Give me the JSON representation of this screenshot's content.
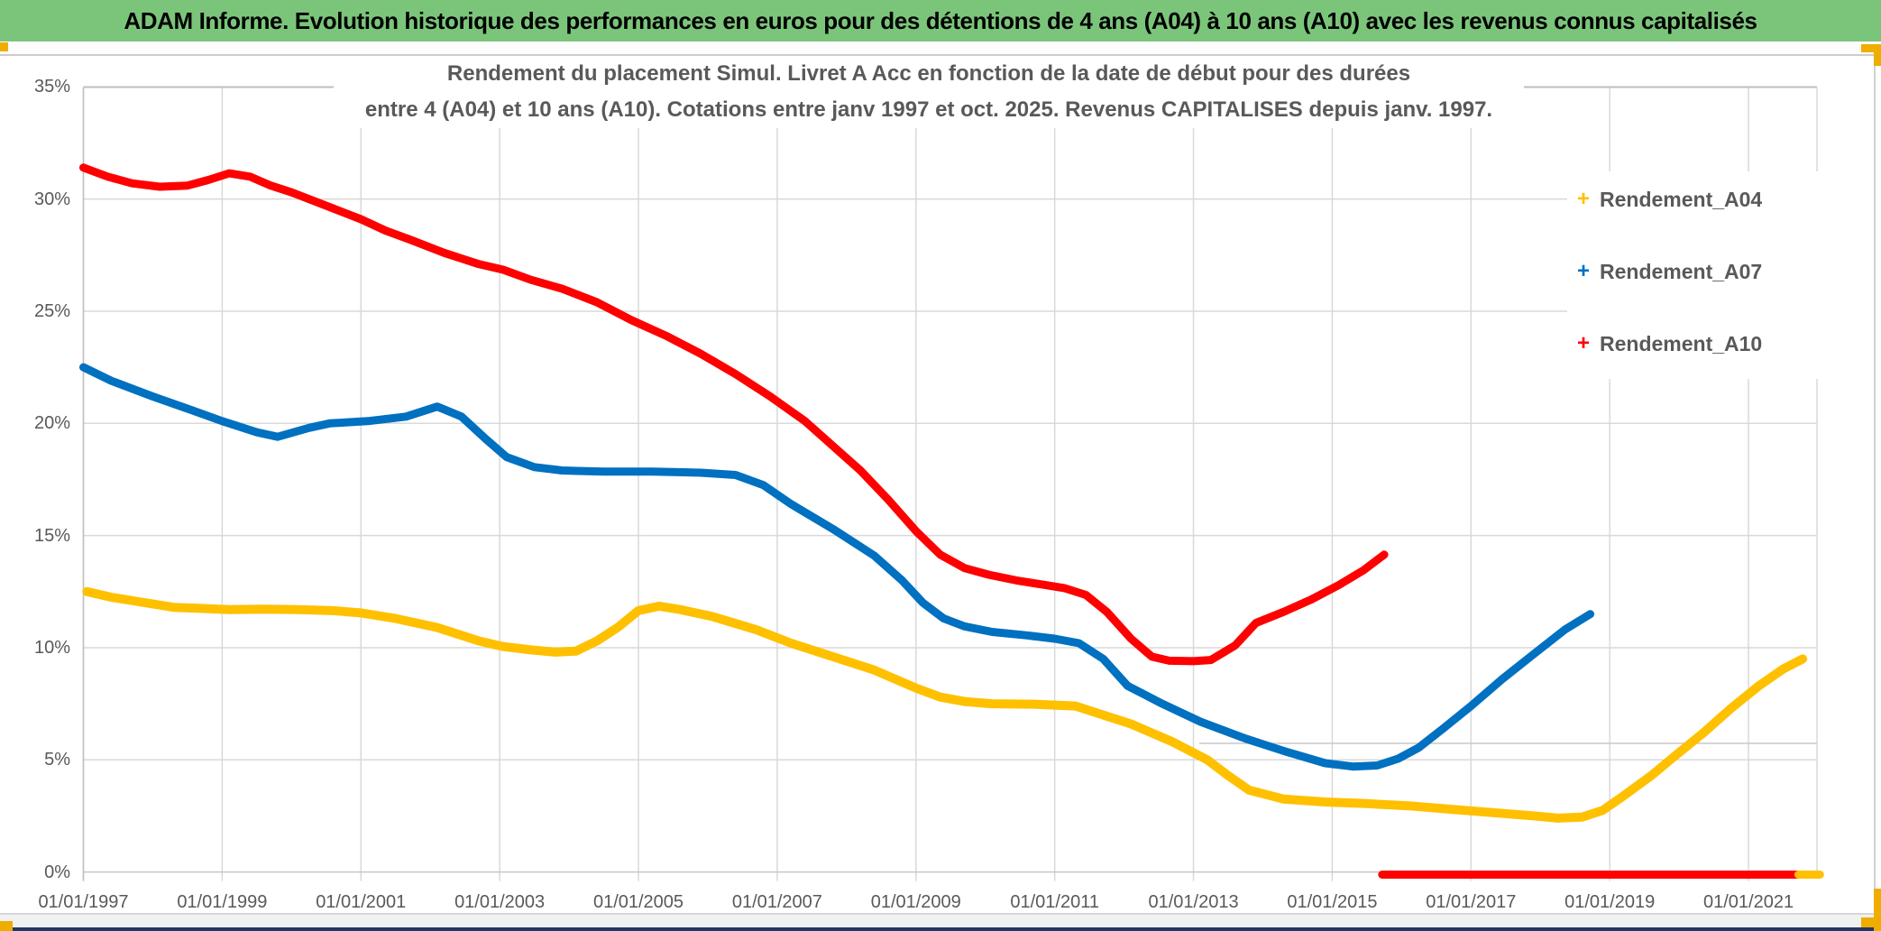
{
  "banner": {
    "text": "ADAM Informe. Evolution historique des performances en euros pour des détentions de 4 ans (A04) à 10 ans (A10) avec les revenus connus capitalisés"
  },
  "chart_data": {
    "type": "line",
    "title_line1": "Rendement du placement Simul. Livret A Acc en fonction de la date de début pour des durées",
    "title_line2": "entre 4 (A04) et 10 ans (A10). Cotations entre janv 1997 et oct. 2025. Revenus CAPITALISES depuis janv. 1997.",
    "x_axis": {
      "tick_years": [
        1997,
        1999,
        2001,
        2003,
        2005,
        2007,
        2009,
        2011,
        2013,
        2015,
        2017,
        2019,
        2021
      ],
      "tick_labels": [
        "01/01/1997",
        "01/01/1999",
        "01/01/2001",
        "01/01/2003",
        "01/01/2005",
        "01/01/2007",
        "01/01/2009",
        "01/01/2011",
        "01/01/2013",
        "01/01/2015",
        "01/01/2017",
        "01/01/2019",
        "01/01/2021"
      ],
      "range_years": [
        1997,
        2022.0
      ]
    },
    "y_axis": {
      "tick_values": [
        0,
        5,
        10,
        15,
        20,
        25,
        30,
        35
      ],
      "tick_labels": [
        "0%",
        "5%",
        "10%",
        "15%",
        "20%",
        "25%",
        "30%",
        "35%"
      ],
      "range": [
        0,
        35
      ],
      "step": 5,
      "grid": true
    },
    "legend": {
      "position": "right",
      "entries": [
        {
          "name": "Rendement_A04",
          "color": "#FFC000",
          "marker": "+"
        },
        {
          "name": "Rendement_A07",
          "color": "#0070C0",
          "marker": "+"
        },
        {
          "name": "Rendement_A10",
          "color": "#FE0000",
          "marker": "+"
        }
      ]
    },
    "series": [
      {
        "name": "Rendement_A04",
        "color": "#FFC000",
        "width": 10,
        "points": [
          [
            1997.05,
            12.5
          ],
          [
            1997.4,
            12.25
          ],
          [
            1997.8,
            12.05
          ],
          [
            1998.3,
            11.8
          ],
          [
            1998.7,
            11.75
          ],
          [
            1999.1,
            11.7
          ],
          [
            1999.6,
            11.72
          ],
          [
            2000.1,
            11.7
          ],
          [
            2000.6,
            11.65
          ],
          [
            2001.0,
            11.55
          ],
          [
            2001.5,
            11.3
          ],
          [
            2002.1,
            10.9
          ],
          [
            2002.7,
            10.3
          ],
          [
            2003.05,
            10.05
          ],
          [
            2003.45,
            9.9
          ],
          [
            2003.8,
            9.8
          ],
          [
            2004.1,
            9.85
          ],
          [
            2004.4,
            10.3
          ],
          [
            2004.7,
            10.9
          ],
          [
            2005.0,
            11.65
          ],
          [
            2005.3,
            11.85
          ],
          [
            2005.6,
            11.7
          ],
          [
            2006.05,
            11.4
          ],
          [
            2006.7,
            10.8
          ],
          [
            2007.2,
            10.2
          ],
          [
            2007.8,
            9.6
          ],
          [
            2008.4,
            9.0
          ],
          [
            2009.0,
            8.2
          ],
          [
            2009.35,
            7.8
          ],
          [
            2009.7,
            7.6
          ],
          [
            2010.1,
            7.5
          ],
          [
            2010.7,
            7.48
          ],
          [
            2011.3,
            7.4
          ],
          [
            2011.6,
            7.1
          ],
          [
            2012.1,
            6.6
          ],
          [
            2012.7,
            5.8
          ],
          [
            2013.2,
            5.0
          ],
          [
            2013.5,
            4.3
          ],
          [
            2013.8,
            3.65
          ],
          [
            2014.3,
            3.25
          ],
          [
            2014.9,
            3.12
          ],
          [
            2015.5,
            3.05
          ],
          [
            2016.1,
            2.95
          ],
          [
            2016.7,
            2.8
          ],
          [
            2017.3,
            2.65
          ],
          [
            2017.9,
            2.5
          ],
          [
            2018.25,
            2.4
          ],
          [
            2018.6,
            2.45
          ],
          [
            2018.9,
            2.75
          ],
          [
            2019.2,
            3.4
          ],
          [
            2019.6,
            4.3
          ],
          [
            2019.95,
            5.2
          ],
          [
            2020.35,
            6.2
          ],
          [
            2020.75,
            7.3
          ],
          [
            2021.15,
            8.3
          ],
          [
            2021.5,
            9.05
          ],
          [
            2021.78,
            9.5
          ]
        ]
      },
      {
        "name": "Rendement_A07",
        "color": "#0070C0",
        "width": 9,
        "points": [
          [
            1997.0,
            22.5
          ],
          [
            1997.4,
            21.9
          ],
          [
            1998.0,
            21.2
          ],
          [
            1998.55,
            20.6
          ],
          [
            1999.0,
            20.1
          ],
          [
            1999.5,
            19.6
          ],
          [
            1999.8,
            19.4
          ],
          [
            2000.25,
            19.8
          ],
          [
            2000.55,
            20.0
          ],
          [
            2001.1,
            20.1
          ],
          [
            2001.65,
            20.3
          ],
          [
            2002.1,
            20.75
          ],
          [
            2002.45,
            20.3
          ],
          [
            2002.8,
            19.3
          ],
          [
            2003.1,
            18.5
          ],
          [
            2003.5,
            18.05
          ],
          [
            2003.9,
            17.9
          ],
          [
            2004.5,
            17.85
          ],
          [
            2005.2,
            17.85
          ],
          [
            2005.9,
            17.8
          ],
          [
            2006.4,
            17.7
          ],
          [
            2006.8,
            17.25
          ],
          [
            2007.2,
            16.4
          ],
          [
            2007.8,
            15.3
          ],
          [
            2008.4,
            14.1
          ],
          [
            2008.8,
            13.0
          ],
          [
            2009.1,
            12.0
          ],
          [
            2009.4,
            11.3
          ],
          [
            2009.7,
            10.95
          ],
          [
            2010.1,
            10.7
          ],
          [
            2010.6,
            10.55
          ],
          [
            2011.0,
            10.4
          ],
          [
            2011.35,
            10.2
          ],
          [
            2011.7,
            9.5
          ],
          [
            2012.05,
            8.3
          ],
          [
            2012.55,
            7.5
          ],
          [
            2013.1,
            6.7
          ],
          [
            2013.75,
            5.95
          ],
          [
            2014.35,
            5.35
          ],
          [
            2014.9,
            4.85
          ],
          [
            2015.3,
            4.7
          ],
          [
            2015.65,
            4.75
          ],
          [
            2015.95,
            5.05
          ],
          [
            2016.25,
            5.55
          ],
          [
            2016.6,
            6.4
          ],
          [
            2017.0,
            7.4
          ],
          [
            2017.45,
            8.6
          ],
          [
            2017.9,
            9.7
          ],
          [
            2018.35,
            10.8
          ],
          [
            2018.72,
            11.5
          ]
        ]
      },
      {
        "name": "Rendement_A10",
        "color": "#FE0000",
        "width": 9,
        "points": [
          [
            1997.0,
            31.4
          ],
          [
            1997.35,
            31.0
          ],
          [
            1997.7,
            30.7
          ],
          [
            1998.1,
            30.55
          ],
          [
            1998.5,
            30.6
          ],
          [
            1998.8,
            30.85
          ],
          [
            1999.1,
            31.15
          ],
          [
            1999.4,
            31.0
          ],
          [
            1999.7,
            30.6
          ],
          [
            2000.0,
            30.3
          ],
          [
            2000.5,
            29.7
          ],
          [
            2001.0,
            29.1
          ],
          [
            2001.35,
            28.6
          ],
          [
            2001.7,
            28.2
          ],
          [
            2002.2,
            27.6
          ],
          [
            2002.7,
            27.1
          ],
          [
            2003.05,
            26.85
          ],
          [
            2003.45,
            26.4
          ],
          [
            2003.9,
            26.0
          ],
          [
            2004.4,
            25.4
          ],
          [
            2004.9,
            24.6
          ],
          [
            2005.4,
            23.9
          ],
          [
            2005.9,
            23.1
          ],
          [
            2006.4,
            22.2
          ],
          [
            2006.9,
            21.2
          ],
          [
            2007.4,
            20.1
          ],
          [
            2007.8,
            19.0
          ],
          [
            2008.2,
            17.9
          ],
          [
            2008.6,
            16.6
          ],
          [
            2009.0,
            15.2
          ],
          [
            2009.35,
            14.15
          ],
          [
            2009.7,
            13.55
          ],
          [
            2010.05,
            13.25
          ],
          [
            2010.45,
            13.0
          ],
          [
            2010.85,
            12.8
          ],
          [
            2011.15,
            12.65
          ],
          [
            2011.45,
            12.35
          ],
          [
            2011.75,
            11.6
          ],
          [
            2012.1,
            10.4
          ],
          [
            2012.4,
            9.6
          ],
          [
            2012.65,
            9.42
          ],
          [
            2013.0,
            9.4
          ],
          [
            2013.25,
            9.45
          ],
          [
            2013.6,
            10.1
          ],
          [
            2013.9,
            11.1
          ],
          [
            2014.3,
            11.6
          ],
          [
            2014.7,
            12.15
          ],
          [
            2015.1,
            12.8
          ],
          [
            2015.45,
            13.45
          ],
          [
            2015.75,
            14.15
          ]
        ]
      }
    ],
    "zero_value_segments": [
      {
        "series": "Rendement_A10",
        "color": "#FE0000",
        "from_year": 2015.72,
        "to_year": 2021.97,
        "value": 0
      },
      {
        "series": "Rendement_A04",
        "color": "#FFC000",
        "from_year": 2021.72,
        "to_year": 2022.03,
        "value": 0
      }
    ]
  }
}
